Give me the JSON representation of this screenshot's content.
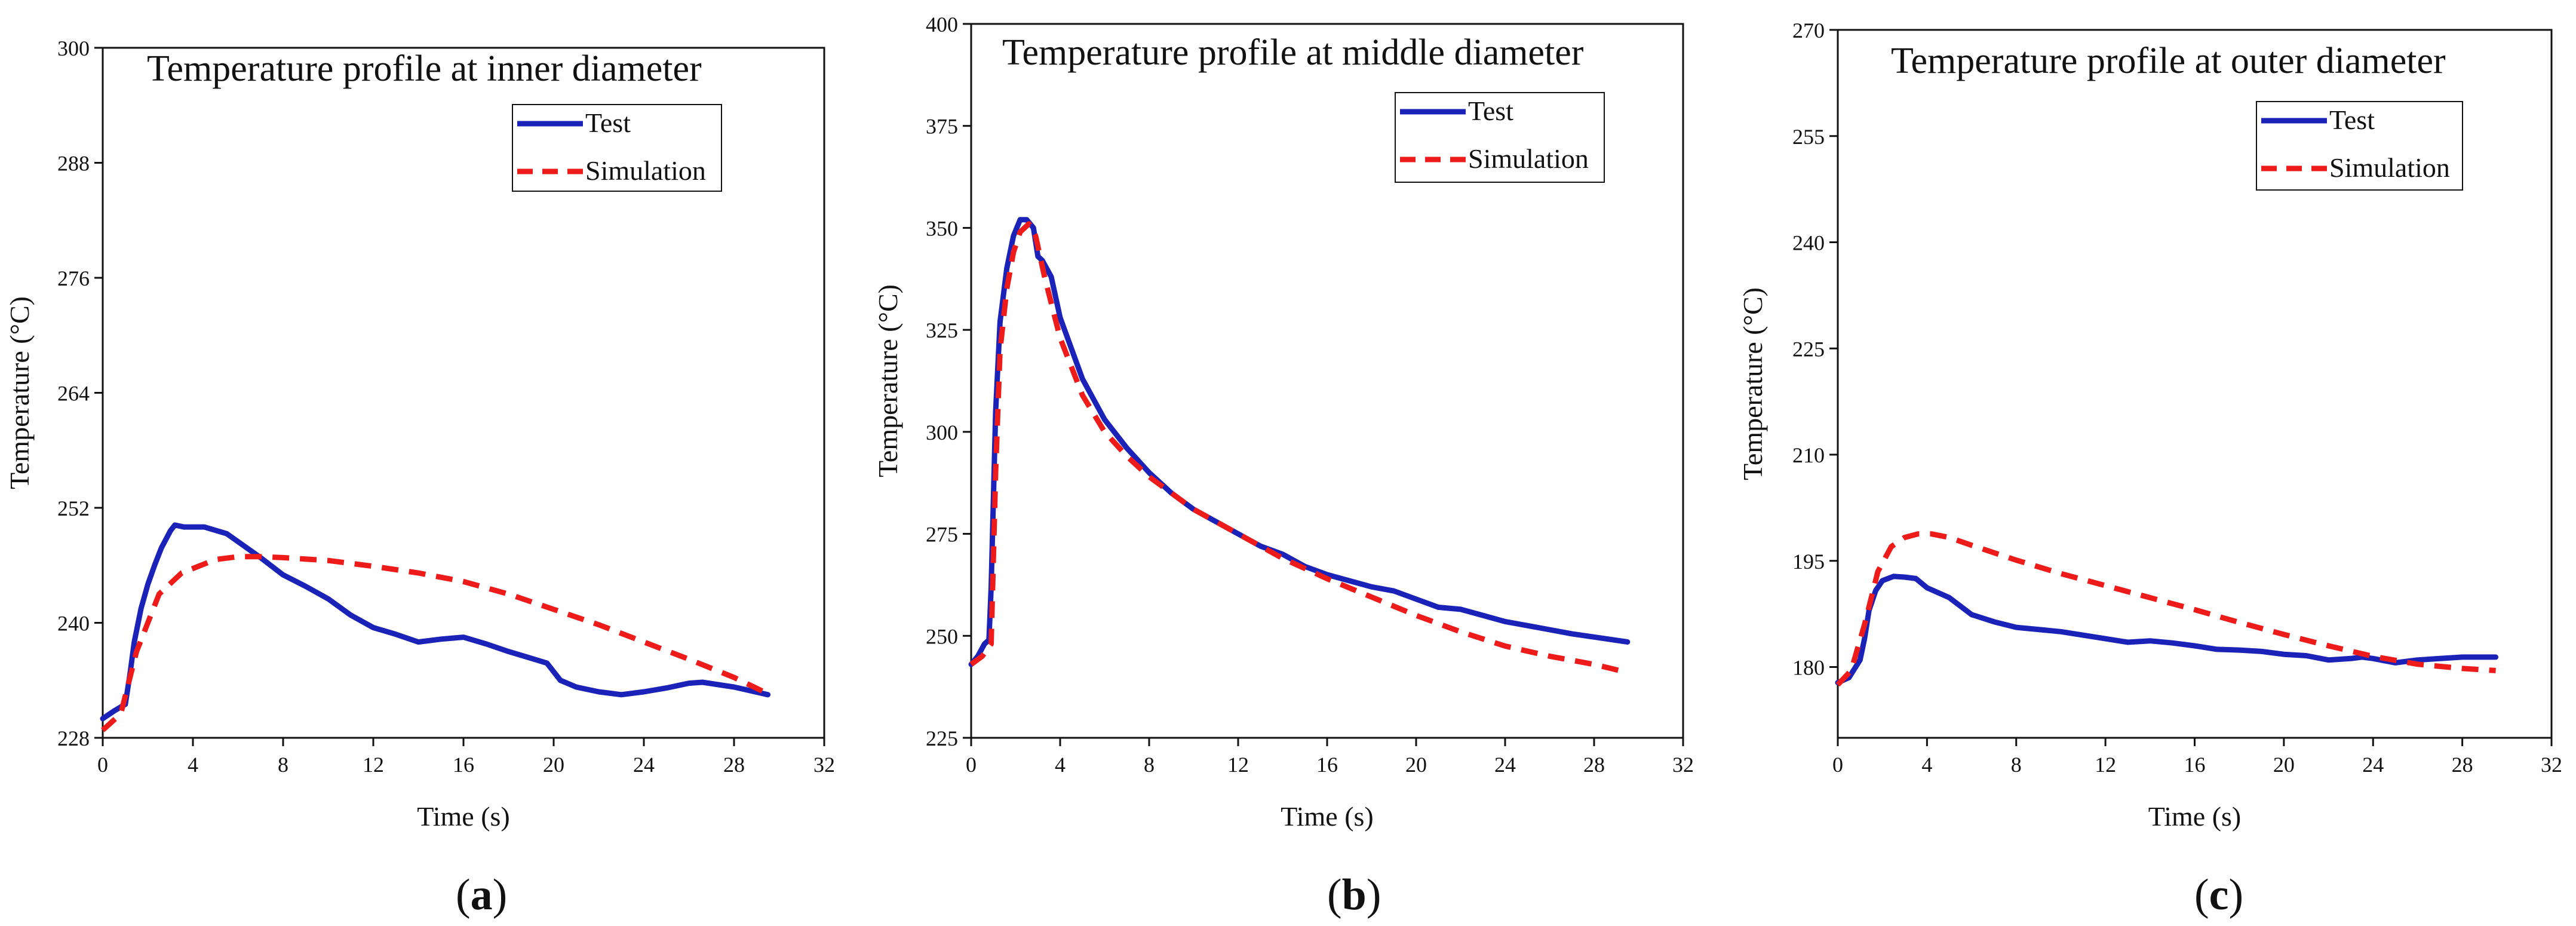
{
  "figure": {
    "panels": [
      "a",
      "b",
      "c"
    ]
  },
  "chart_data": [
    {
      "type": "line",
      "panel": "a",
      "caption": {
        "open": "(",
        "letter": "a",
        "close": ")"
      },
      "title": "Temperature profile at inner diameter",
      "xlabel": "Time (s)",
      "ylabel": "Temperature (°C)",
      "xlim": [
        0,
        32
      ],
      "ylim": [
        228,
        300
      ],
      "xticks": [
        0,
        4,
        8,
        12,
        16,
        20,
        24,
        28,
        32
      ],
      "yticks": [
        228,
        240,
        252,
        264,
        276,
        288,
        300
      ],
      "legend_position": "top-right",
      "series": [
        {
          "name": "Test",
          "color": "#1a22b8",
          "style": "solid",
          "x": [
            0,
            0.5,
            1.0,
            1.2,
            1.4,
            1.7,
            2.0,
            2.3,
            2.6,
            3.0,
            3.2,
            3.6,
            4.5,
            5.5,
            7,
            8,
            9,
            10,
            11,
            12,
            13,
            14,
            15,
            16,
            17,
            18,
            19,
            19.7,
            20.3,
            21,
            22,
            23,
            24,
            25,
            26,
            26.6,
            28,
            29.5
          ],
          "values": [
            230.0,
            230.8,
            231.5,
            234.5,
            238.0,
            241.5,
            244.0,
            246.0,
            247.8,
            249.6,
            250.2,
            250.0,
            250.0,
            249.3,
            246.8,
            245.0,
            243.8,
            242.5,
            240.8,
            239.5,
            238.8,
            238.0,
            238.3,
            238.5,
            237.8,
            237.0,
            236.3,
            235.8,
            234.0,
            233.3,
            232.8,
            232.5,
            232.8,
            233.2,
            233.7,
            233.8,
            233.3,
            232.5
          ]
        },
        {
          "name": "Simulation",
          "color": "#ee1b1b",
          "style": "dashed",
          "x": [
            0,
            0.8,
            1.5,
            2.5,
            3.5,
            5,
            6,
            7,
            8,
            10,
            12,
            14,
            16,
            18,
            20,
            22,
            24,
            26,
            28,
            29.5
          ],
          "values": [
            228.8,
            230.5,
            237.0,
            243.0,
            245.2,
            246.6,
            246.9,
            246.9,
            246.8,
            246.5,
            245.9,
            245.2,
            244.3,
            243.0,
            241.4,
            239.8,
            238.0,
            236.2,
            234.3,
            232.6
          ]
        }
      ]
    },
    {
      "type": "line",
      "panel": "b",
      "caption": {
        "open": "(",
        "letter": "b",
        "close": ")"
      },
      "title": "Temperature profile at middle diameter",
      "xlabel": "Time (s)",
      "ylabel": "Temperature (°C)",
      "xlim": [
        0,
        32
      ],
      "ylim": [
        225,
        400
      ],
      "xticks": [
        0,
        4,
        8,
        12,
        16,
        20,
        24,
        28,
        32
      ],
      "yticks": [
        225,
        250,
        275,
        300,
        325,
        350,
        375,
        400
      ],
      "legend_position": "top-right",
      "series": [
        {
          "name": "Test",
          "color": "#1a22b8",
          "style": "solid",
          "x": [
            0,
            0.3,
            0.6,
            0.8,
            0.9,
            1.1,
            1.3,
            1.6,
            1.9,
            2.2,
            2.5,
            2.8,
            3.0,
            3.2,
            3.6,
            4.0,
            5,
            6,
            7,
            8,
            9,
            10,
            11,
            12,
            13,
            14,
            15,
            16,
            17,
            18,
            19,
            20,
            21,
            22,
            23,
            24,
            25,
            26,
            27,
            28,
            29.5
          ],
          "values": [
            243,
            245,
            248,
            249,
            262,
            305,
            327,
            340,
            348,
            352,
            352,
            350,
            343,
            342,
            338,
            328,
            313,
            303,
            296,
            290,
            285,
            281,
            278,
            275,
            272,
            270,
            267,
            265,
            263.5,
            262,
            261,
            259,
            257,
            256.5,
            255,
            253.5,
            252.5,
            251.5,
            250.5,
            249.7,
            248.5
          ]
        },
        {
          "name": "Simulation",
          "color": "#ee1b1b",
          "style": "dashed",
          "x": [
            0,
            0.5,
            0.9,
            1.1,
            1.3,
            1.6,
            1.9,
            2.2,
            2.6,
            2.9,
            3.3,
            4,
            5,
            6,
            7,
            8,
            10,
            12,
            14,
            16,
            18,
            20,
            22,
            24,
            26,
            28,
            29.5
          ],
          "values": [
            243,
            245,
            248,
            290,
            320,
            335,
            344,
            349,
            351,
            348,
            338,
            323,
            309,
            300,
            294,
            289,
            281,
            275,
            269,
            264,
            259.5,
            255,
            251,
            247.5,
            245,
            243,
            241
          ]
        }
      ]
    },
    {
      "type": "line",
      "panel": "c",
      "caption": {
        "open": "(",
        "letter": "c",
        "close": ")"
      },
      "title": "Temperature profile at outer diameter",
      "xlabel": "Time (s)",
      "ylabel": "Temperature (°C)",
      "xlim": [
        0,
        32
      ],
      "ylim": [
        170,
        270
      ],
      "xticks": [
        0,
        4,
        8,
        12,
        16,
        20,
        24,
        28,
        32
      ],
      "yticks": [
        180,
        195,
        210,
        225,
        240,
        255,
        270
      ],
      "legend_position": "top-right",
      "series": [
        {
          "name": "Test",
          "color": "#1a22b8",
          "style": "solid",
          "x": [
            0,
            0.5,
            1.0,
            1.2,
            1.4,
            1.7,
            2.0,
            2.5,
            3.0,
            3.5,
            4,
            5,
            6,
            7,
            8,
            10,
            12,
            13,
            14,
            15,
            16,
            17,
            18,
            19,
            20,
            21,
            22,
            23,
            23.5,
            24,
            25,
            26,
            27,
            28,
            29.5
          ],
          "values": [
            177.8,
            178.5,
            181.0,
            184.0,
            188.0,
            190.8,
            192.2,
            192.8,
            192.7,
            192.5,
            191.2,
            189.8,
            187.4,
            186.4,
            185.6,
            185.0,
            184.0,
            183.5,
            183.7,
            183.4,
            183.0,
            182.5,
            182.4,
            182.2,
            181.8,
            181.6,
            181.0,
            181.2,
            181.4,
            181.2,
            180.6,
            181.0,
            181.2,
            181.4,
            181.4
          ]
        },
        {
          "name": "Simulation",
          "color": "#ee1b1b",
          "style": "dashed",
          "x": [
            0,
            0.6,
            1.2,
            1.8,
            2.4,
            3.0,
            3.6,
            4.2,
            5,
            6,
            8,
            10,
            12,
            14,
            16,
            18,
            20,
            22,
            24,
            26,
            28,
            29.5
          ],
          "values": [
            177.5,
            179.5,
            186.0,
            193.5,
            197.0,
            198.3,
            198.8,
            198.8,
            198.3,
            197.2,
            195.1,
            193.2,
            191.5,
            189.8,
            188.1,
            186.3,
            184.6,
            183.0,
            181.5,
            180.4,
            179.8,
            179.5
          ]
        }
      ]
    }
  ]
}
